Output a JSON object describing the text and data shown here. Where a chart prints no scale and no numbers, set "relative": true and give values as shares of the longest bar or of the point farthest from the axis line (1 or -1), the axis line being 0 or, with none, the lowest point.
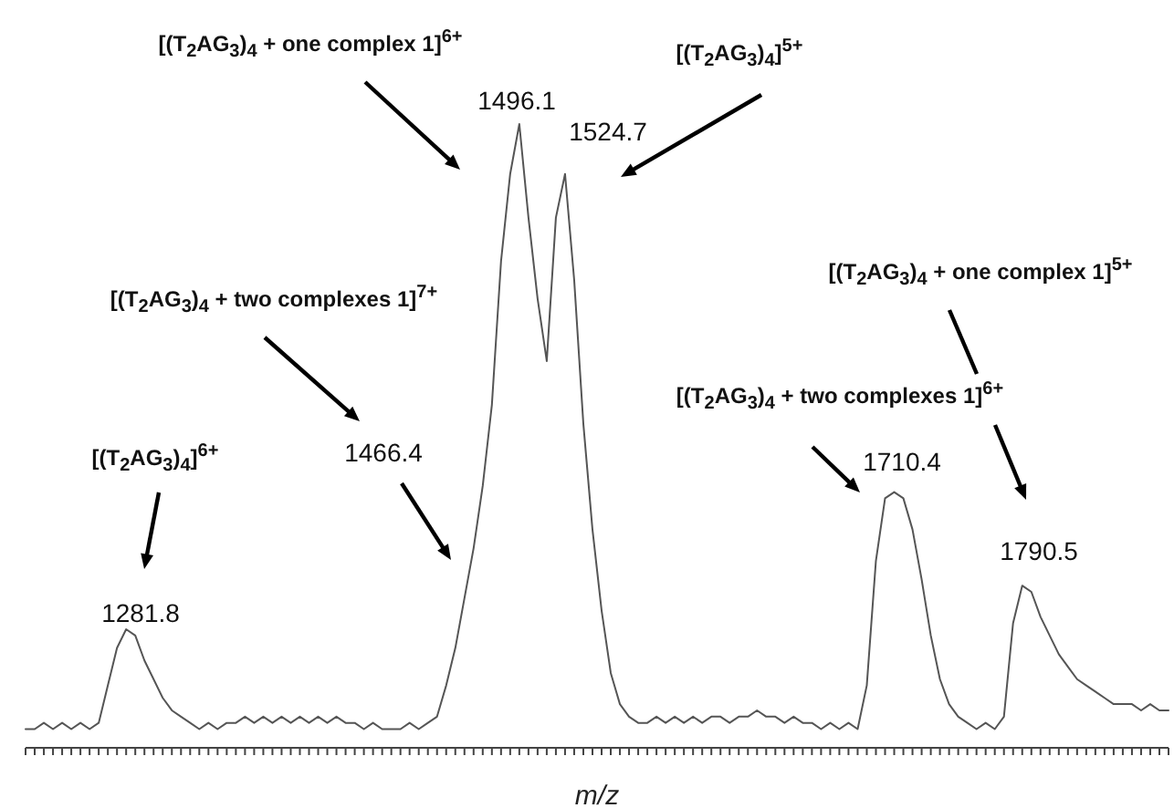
{
  "chart_data": {
    "type": "line",
    "relative": true,
    "xlabel": "m/z",
    "color": "#555555",
    "categories": [
      null,
      null,
      null,
      null,
      null,
      null,
      null,
      null,
      null,
      null,
      null,
      null,
      null,
      null,
      null,
      null,
      null,
      null,
      null,
      null,
      null,
      null,
      null,
      null,
      null,
      null,
      null,
      null,
      null,
      null,
      null,
      null,
      null,
      null,
      null,
      null,
      null,
      null,
      null,
      null,
      null,
      null,
      null,
      null,
      null,
      null,
      null,
      null,
      null,
      null,
      null,
      null,
      null,
      null,
      null,
      null,
      null,
      null,
      null,
      null,
      null,
      null,
      null,
      null,
      null,
      null,
      null,
      null,
      null,
      null,
      null,
      null,
      null,
      null,
      null,
      null,
      null,
      null,
      null,
      null,
      null,
      null,
      null,
      null,
      null,
      null,
      null,
      null,
      null,
      null,
      null,
      null,
      null,
      null,
      null,
      null,
      null,
      null,
      null,
      null,
      null,
      null,
      null,
      null,
      null,
      null,
      null,
      null,
      null,
      null,
      null,
      null,
      null,
      null,
      null,
      null,
      null,
      null,
      null,
      null,
      null,
      null,
      null,
      null,
      null,
      null
    ],
    "values": [
      0.03,
      0.03,
      0.04,
      0.03,
      0.04,
      0.03,
      0.04,
      0.03,
      0.04,
      0.1,
      0.16,
      0.19,
      0.18,
      0.14,
      0.11,
      0.08,
      0.06,
      0.05,
      0.04,
      0.03,
      0.04,
      0.03,
      0.04,
      0.04,
      0.05,
      0.04,
      0.05,
      0.04,
      0.05,
      0.04,
      0.05,
      0.04,
      0.05,
      0.04,
      0.05,
      0.04,
      0.04,
      0.03,
      0.04,
      0.03,
      0.03,
      0.03,
      0.04,
      0.03,
      0.04,
      0.05,
      0.1,
      0.16,
      0.24,
      0.32,
      0.42,
      0.55,
      0.78,
      0.92,
      1,
      0.85,
      0.72,
      0.62,
      0.85,
      0.92,
      0.75,
      0.52,
      0.35,
      0.22,
      0.12,
      0.07,
      0.05,
      0.04,
      0.04,
      0.05,
      0.04,
      0.05,
      0.04,
      0.05,
      0.04,
      0.05,
      0.05,
      0.04,
      0.05,
      0.05,
      0.06,
      0.05,
      0.05,
      0.04,
      0.05,
      0.04,
      0.04,
      0.03,
      0.04,
      0.03,
      0.04,
      0.03,
      0.1,
      0.3,
      0.4,
      0.41,
      0.4,
      0.35,
      0.27,
      0.18,
      0.11,
      0.07,
      0.05,
      0.04,
      0.03,
      0.04,
      0.03,
      0.05,
      0.2,
      0.26,
      0.25,
      0.21,
      0.18,
      0.15,
      0.13,
      0.11,
      0.1,
      0.09,
      0.08,
      0.07,
      0.07,
      0.07,
      0.06,
      0.07,
      0.06,
      0.06
    ],
    "annotations": [
      {
        "text": "[(T$_{2}$AG$_{3}$)$_{4}$ + one complex 1]$^{6+}$"
      },
      {
        "text": "[(T$_{2}$AG$_{3}$)$_{4}$]$^{5+}$"
      },
      {
        "text": "1496.1"
      },
      {
        "text": "1524.7"
      },
      {
        "text": "[(T$_{2}$AG$_{3}$)$_{4}$ + two complexes 1]$^{7+}$"
      },
      {
        "text": "1466.4"
      },
      {
        "text": "[(T$_{2}$AG$_{3}$)$_{4}$]$^{6+}$"
      },
      {
        "text": "1281.8"
      },
      {
        "text": "[(T$_{2}$AG$_{3}$)$_{4}$ + one complex 1]$^{5+}$"
      },
      {
        "text": "[(T$_{2}$AG$_{3}$)$_{4}$ + two complexes 1]$^{6+}$"
      },
      {
        "text": "1710.4"
      },
      {
        "text": "1790.5"
      }
    ]
  }
}
